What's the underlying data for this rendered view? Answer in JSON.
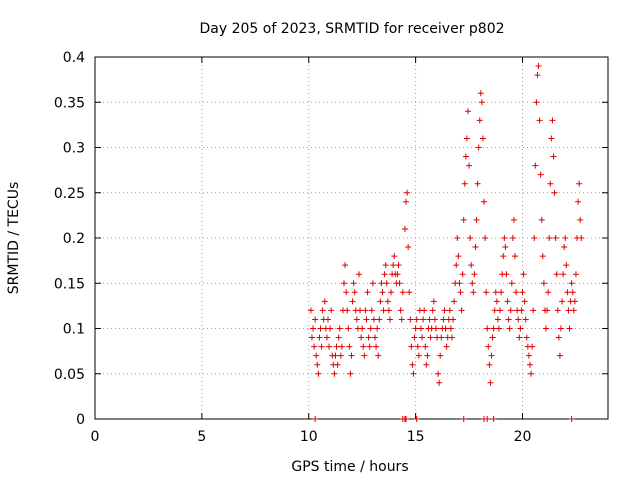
{
  "chart_data": {
    "type": "scatter",
    "title": "Day 205 of 2023, SRMTID for receiver p802",
    "xlabel": "GPS time / hours",
    "ylabel": "SRMTID / TECUs",
    "xlim": [
      0,
      24
    ],
    "ylim": [
      0,
      0.4
    ],
    "xticks": [
      0,
      5,
      10,
      15,
      20
    ],
    "yticks": [
      0,
      0.05,
      0.1,
      0.15,
      0.2,
      0.25,
      0.3,
      0.35,
      0.4
    ],
    "xtick_labels": [
      "0",
      "5",
      "10",
      "15",
      "20"
    ],
    "ytick_labels": [
      "0",
      "0.05",
      "0.1",
      "0.15",
      "0.2",
      "0.25",
      "0.3",
      "0.35",
      "0.4"
    ],
    "grid": true,
    "marker": "+",
    "color": "#e00000",
    "series": [
      {
        "name": "SRMTID",
        "points": [
          [
            10.1,
            0.12
          ],
          [
            10.15,
            0.09
          ],
          [
            10.2,
            0.1
          ],
          [
            10.25,
            0.08
          ],
          [
            10.3,
            0.11
          ],
          [
            10.35,
            0.07
          ],
          [
            10.4,
            0.06
          ],
          [
            10.45,
            0.05
          ],
          [
            10.5,
            0.09
          ],
          [
            10.55,
            0.1
          ],
          [
            10.6,
            0.08
          ],
          [
            10.65,
            0.12
          ],
          [
            10.7,
            0.11
          ],
          [
            10.75,
            0.13
          ],
          [
            10.8,
            0.1
          ],
          [
            10.85,
            0.09
          ],
          [
            10.9,
            0.11
          ],
          [
            10.95,
            0.08
          ],
          [
            11.0,
            0.1
          ],
          [
            11.05,
            0.12
          ],
          [
            11.1,
            0.07
          ],
          [
            11.15,
            0.06
          ],
          [
            11.2,
            0.05
          ],
          [
            11.25,
            0.07
          ],
          [
            11.3,
            0.08
          ],
          [
            11.35,
            0.06
          ],
          [
            11.4,
            0.09
          ],
          [
            11.45,
            0.1
          ],
          [
            11.5,
            0.07
          ],
          [
            11.55,
            0.08
          ],
          [
            11.6,
            0.12
          ],
          [
            11.65,
            0.15
          ],
          [
            11.7,
            0.17
          ],
          [
            11.75,
            0.14
          ],
          [
            11.8,
            0.12
          ],
          [
            11.85,
            0.1
          ],
          [
            11.9,
            0.08
          ],
          [
            11.95,
            0.05
          ],
          [
            12.0,
            0.07
          ],
          [
            12.05,
            0.13
          ],
          [
            12.1,
            0.15
          ],
          [
            12.15,
            0.14
          ],
          [
            12.2,
            0.12
          ],
          [
            12.25,
            0.11
          ],
          [
            12.3,
            0.1
          ],
          [
            12.35,
            0.16
          ],
          [
            12.4,
            0.12
          ],
          [
            12.45,
            0.09
          ],
          [
            12.5,
            0.1
          ],
          [
            12.55,
            0.08
          ],
          [
            12.6,
            0.07
          ],
          [
            12.65,
            0.12
          ],
          [
            12.7,
            0.11
          ],
          [
            12.75,
            0.14
          ],
          [
            12.8,
            0.09
          ],
          [
            12.85,
            0.08
          ],
          [
            12.9,
            0.1
          ],
          [
            12.95,
            0.12
          ],
          [
            13.0,
            0.15
          ],
          [
            13.05,
            0.11
          ],
          [
            13.1,
            0.09
          ],
          [
            13.15,
            0.08
          ],
          [
            13.2,
            0.1
          ],
          [
            13.25,
            0.07
          ],
          [
            13.3,
            0.11
          ],
          [
            13.35,
            0.13
          ],
          [
            13.4,
            0.15
          ],
          [
            13.45,
            0.14
          ],
          [
            13.5,
            0.12
          ],
          [
            13.55,
            0.16
          ],
          [
            13.6,
            0.17
          ],
          [
            13.65,
            0.15
          ],
          [
            13.7,
            0.13
          ],
          [
            13.75,
            0.12
          ],
          [
            13.8,
            0.11
          ],
          [
            13.85,
            0.14
          ],
          [
            13.9,
            0.16
          ],
          [
            13.95,
            0.17
          ],
          [
            14.0,
            0.18
          ],
          [
            14.05,
            0.16
          ],
          [
            14.1,
            0.15
          ],
          [
            14.15,
            0.16
          ],
          [
            14.2,
            0.17
          ],
          [
            14.25,
            0.15
          ],
          [
            14.3,
            0.12
          ],
          [
            14.35,
            0.11
          ],
          [
            14.4,
            0.14
          ],
          [
            14.5,
            0.21
          ],
          [
            14.55,
            0.24
          ],
          [
            14.6,
            0.25
          ],
          [
            14.65,
            0.19
          ],
          [
            14.7,
            0.14
          ],
          [
            14.75,
            0.11
          ],
          [
            14.8,
            0.08
          ],
          [
            14.85,
            0.06
          ],
          [
            14.9,
            0.05
          ],
          [
            14.95,
            0.09
          ],
          [
            15.0,
            0.1
          ],
          [
            15.05,
            0.11
          ],
          [
            15.1,
            0.08
          ],
          [
            15.15,
            0.07
          ],
          [
            15.2,
            0.12
          ],
          [
            15.25,
            0.1
          ],
          [
            15.3,
            0.09
          ],
          [
            15.35,
            0.11
          ],
          [
            15.4,
            0.12
          ],
          [
            15.45,
            0.08
          ],
          [
            15.5,
            0.06
          ],
          [
            15.55,
            0.07
          ],
          [
            15.6,
            0.1
          ],
          [
            15.65,
            0.11
          ],
          [
            15.7,
            0.09
          ],
          [
            15.75,
            0.1
          ],
          [
            15.8,
            0.12
          ],
          [
            15.85,
            0.13
          ],
          [
            15.9,
            0.11
          ],
          [
            15.95,
            0.1
          ],
          [
            16.0,
            0.09
          ],
          [
            16.05,
            0.05
          ],
          [
            16.1,
            0.04
          ],
          [
            16.15,
            0.07
          ],
          [
            16.2,
            0.09
          ],
          [
            16.25,
            0.1
          ],
          [
            16.3,
            0.11
          ],
          [
            16.35,
            0.12
          ],
          [
            16.4,
            0.1
          ],
          [
            16.45,
            0.08
          ],
          [
            16.5,
            0.09
          ],
          [
            16.55,
            0.11
          ],
          [
            16.6,
            0.12
          ],
          [
            16.65,
            0.1
          ],
          [
            16.7,
            0.09
          ],
          [
            16.75,
            0.11
          ],
          [
            16.8,
            0.13
          ],
          [
            16.85,
            0.15
          ],
          [
            16.9,
            0.17
          ],
          [
            16.95,
            0.2
          ],
          [
            17.0,
            0.18
          ],
          [
            17.05,
            0.15
          ],
          [
            17.1,
            0.14
          ],
          [
            17.15,
            0.12
          ],
          [
            17.2,
            0.16
          ],
          [
            17.25,
            0.22
          ],
          [
            17.3,
            0.26
          ],
          [
            17.35,
            0.29
          ],
          [
            17.4,
            0.31
          ],
          [
            17.45,
            0.34
          ],
          [
            17.5,
            0.28
          ],
          [
            17.55,
            0.2
          ],
          [
            17.6,
            0.17
          ],
          [
            17.65,
            0.15
          ],
          [
            17.7,
            0.14
          ],
          [
            17.75,
            0.16
          ],
          [
            17.8,
            0.19
          ],
          [
            17.85,
            0.22
          ],
          [
            17.9,
            0.26
          ],
          [
            17.95,
            0.3
          ],
          [
            18.0,
            0.33
          ],
          [
            18.05,
            0.36
          ],
          [
            18.1,
            0.35
          ],
          [
            18.15,
            0.31
          ],
          [
            18.2,
            0.24
          ],
          [
            18.25,
            0.2
          ],
          [
            18.3,
            0.14
          ],
          [
            18.35,
            0.1
          ],
          [
            18.4,
            0.08
          ],
          [
            18.45,
            0.06
          ],
          [
            18.5,
            0.04
          ],
          [
            18.55,
            0.07
          ],
          [
            18.6,
            0.09
          ],
          [
            18.65,
            0.1
          ],
          [
            18.7,
            0.12
          ],
          [
            18.75,
            0.14
          ],
          [
            18.8,
            0.13
          ],
          [
            18.85,
            0.11
          ],
          [
            18.9,
            0.1
          ],
          [
            18.95,
            0.12
          ],
          [
            19.0,
            0.14
          ],
          [
            19.05,
            0.16
          ],
          [
            19.1,
            0.18
          ],
          [
            19.15,
            0.2
          ],
          [
            19.2,
            0.19
          ],
          [
            19.25,
            0.16
          ],
          [
            19.3,
            0.13
          ],
          [
            19.35,
            0.11
          ],
          [
            19.4,
            0.1
          ],
          [
            19.45,
            0.12
          ],
          [
            19.5,
            0.15
          ],
          [
            19.55,
            0.2
          ],
          [
            19.6,
            0.22
          ],
          [
            19.65,
            0.18
          ],
          [
            19.7,
            0.14
          ],
          [
            19.75,
            0.12
          ],
          [
            19.8,
            0.11
          ],
          [
            19.85,
            0.09
          ],
          [
            19.9,
            0.1
          ],
          [
            19.95,
            0.12
          ],
          [
            20.0,
            0.14
          ],
          [
            20.05,
            0.16
          ],
          [
            20.1,
            0.13
          ],
          [
            20.15,
            0.11
          ],
          [
            20.2,
            0.09
          ],
          [
            20.25,
            0.08
          ],
          [
            20.3,
            0.07
          ],
          [
            20.35,
            0.06
          ],
          [
            20.4,
            0.05
          ],
          [
            20.45,
            0.08
          ],
          [
            20.5,
            0.12
          ],
          [
            20.55,
            0.2
          ],
          [
            20.6,
            0.28
          ],
          [
            20.65,
            0.35
          ],
          [
            20.7,
            0.38
          ],
          [
            20.75,
            0.39
          ],
          [
            20.8,
            0.33
          ],
          [
            20.85,
            0.27
          ],
          [
            20.9,
            0.22
          ],
          [
            20.95,
            0.18
          ],
          [
            21.0,
            0.15
          ],
          [
            21.05,
            0.12
          ],
          [
            21.1,
            0.1
          ],
          [
            21.15,
            0.12
          ],
          [
            21.2,
            0.14
          ],
          [
            21.25,
            0.2
          ],
          [
            21.3,
            0.26
          ],
          [
            21.35,
            0.31
          ],
          [
            21.4,
            0.33
          ],
          [
            21.45,
            0.29
          ],
          [
            21.5,
            0.25
          ],
          [
            21.55,
            0.2
          ],
          [
            21.6,
            0.16
          ],
          [
            21.65,
            0.12
          ],
          [
            21.7,
            0.09
          ],
          [
            21.75,
            0.07
          ],
          [
            21.8,
            0.1
          ],
          [
            21.85,
            0.13
          ],
          [
            21.9,
            0.16
          ],
          [
            21.95,
            0.19
          ],
          [
            22.0,
            0.2
          ],
          [
            22.05,
            0.17
          ],
          [
            22.1,
            0.14
          ],
          [
            22.15,
            0.12
          ],
          [
            22.2,
            0.1
          ],
          [
            22.25,
            0.13
          ],
          [
            22.3,
            0.15
          ],
          [
            22.35,
            0.14
          ],
          [
            22.4,
            0.12
          ],
          [
            22.45,
            0.13
          ],
          [
            22.5,
            0.16
          ],
          [
            22.55,
            0.2
          ],
          [
            22.6,
            0.24
          ],
          [
            22.65,
            0.26
          ],
          [
            22.7,
            0.22
          ],
          [
            22.75,
            0.2
          ]
        ]
      }
    ],
    "zero_points_x": [
      10.3,
      14.4,
      14.5,
      14.55,
      15.05,
      17.25,
      18.2,
      18.35,
      18.65,
      22.3
    ]
  }
}
